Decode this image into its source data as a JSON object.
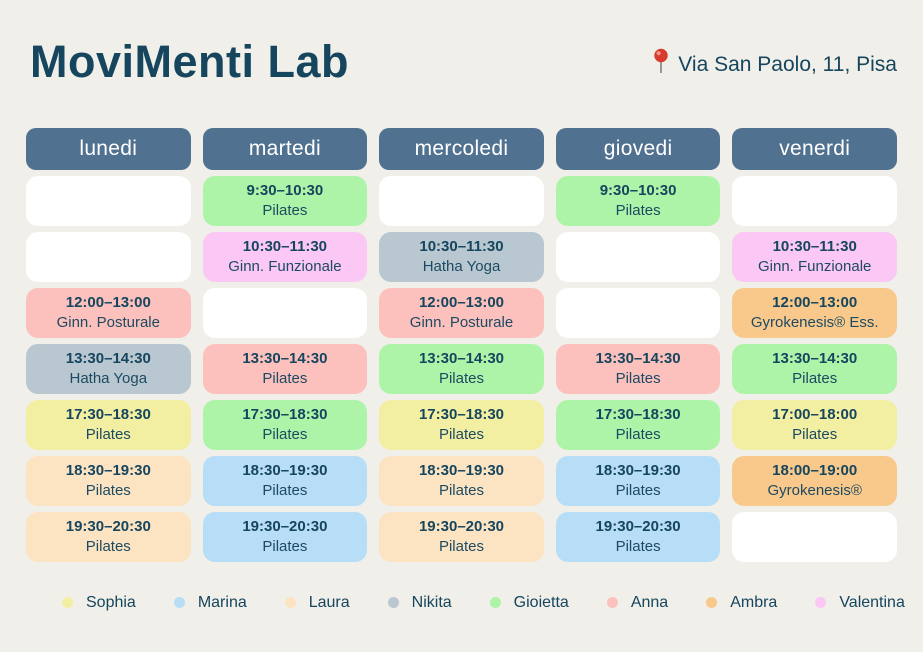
{
  "page": {
    "title": "MoviMenti Lab",
    "address": "Via San Paolo, 11, Pisa"
  },
  "colors": {
    "background": "#f0efe9",
    "day_header_bg": "#50718f",
    "day_header_text": "#ffffff",
    "text_dark": "#16455e",
    "empty_cell": "#ffffff",
    "pin_red": "#d93a2e"
  },
  "schedule": {
    "days": [
      {
        "label": "lunedi",
        "slots": [
          null,
          null,
          {
            "time": "12:00–13:00",
            "activity": "Ginn. Posturale",
            "teacher": "Anna"
          },
          {
            "time": "13:30–14:30",
            "activity": "Hatha Yoga",
            "teacher": "Nikita"
          },
          {
            "time": "17:30–18:30",
            "activity": "Pilates",
            "teacher": "Sophia"
          },
          {
            "time": "18:30–19:30",
            "activity": "Pilates",
            "teacher": "Laura"
          },
          {
            "time": "19:30–20:30",
            "activity": "Pilates",
            "teacher": "Laura"
          }
        ]
      },
      {
        "label": "martedi",
        "slots": [
          {
            "time": "9:30–10:30",
            "activity": "Pilates",
            "teacher": "Gioietta"
          },
          {
            "time": "10:30–11:30",
            "activity": "Ginn. Funzionale",
            "teacher": "Valentina"
          },
          null,
          {
            "time": "13:30–14:30",
            "activity": "Pilates",
            "teacher": "Anna"
          },
          {
            "time": "17:30–18:30",
            "activity": "Pilates",
            "teacher": "Gioietta"
          },
          {
            "time": "18:30–19:30",
            "activity": "Pilates",
            "teacher": "Marina"
          },
          {
            "time": "19:30–20:30",
            "activity": "Pilates",
            "teacher": "Marina"
          }
        ]
      },
      {
        "label": "mercoledi",
        "slots": [
          null,
          {
            "time": "10:30–11:30",
            "activity": "Hatha Yoga",
            "teacher": "Nikita"
          },
          {
            "time": "12:00–13:00",
            "activity": "Ginn. Posturale",
            "teacher": "Anna"
          },
          {
            "time": "13:30–14:30",
            "activity": "Pilates",
            "teacher": "Gioietta"
          },
          {
            "time": "17:30–18:30",
            "activity": "Pilates",
            "teacher": "Sophia"
          },
          {
            "time": "18:30–19:30",
            "activity": "Pilates",
            "teacher": "Laura"
          },
          {
            "time": "19:30–20:30",
            "activity": "Pilates",
            "teacher": "Laura"
          }
        ]
      },
      {
        "label": "giovedi",
        "slots": [
          {
            "time": "9:30–10:30",
            "activity": "Pilates",
            "teacher": "Gioietta"
          },
          null,
          null,
          {
            "time": "13:30–14:30",
            "activity": "Pilates",
            "teacher": "Anna"
          },
          {
            "time": "17:30–18:30",
            "activity": "Pilates",
            "teacher": "Gioietta"
          },
          {
            "time": "18:30–19:30",
            "activity": "Pilates",
            "teacher": "Marina"
          },
          {
            "time": "19:30–20:30",
            "activity": "Pilates",
            "teacher": "Marina"
          }
        ]
      },
      {
        "label": "venerdi",
        "slots": [
          null,
          {
            "time": "10:30–11:30",
            "activity": "Ginn. Funzionale",
            "teacher": "Valentina"
          },
          {
            "time": "12:00–13:00",
            "activity": "Gyrokenesis® Ess.",
            "teacher": "Ambra"
          },
          {
            "time": "13:30–14:30",
            "activity": "Pilates",
            "teacher": "Gioietta"
          },
          {
            "time": "17:00–18:00",
            "activity": "Pilates",
            "teacher": "Sophia"
          },
          {
            "time": "18:00–19:00",
            "activity": "Gyrokenesis®",
            "teacher": "Ambra"
          },
          null
        ]
      }
    ]
  },
  "legend": {
    "teachers": [
      {
        "name": "Sophia",
        "color": "#f3efa2"
      },
      {
        "name": "Marina",
        "color": "#b7ddf7"
      },
      {
        "name": "Laura",
        "color": "#fce4c2"
      },
      {
        "name": "Nikita",
        "color": "#b9c7d1"
      },
      {
        "name": "Gioietta",
        "color": "#aef4a8"
      },
      {
        "name": "Anna",
        "color": "#fcc1bc"
      },
      {
        "name": "Ambra",
        "color": "#f8c98b"
      },
      {
        "name": "Valentina",
        "color": "#fbc7f5"
      }
    ]
  }
}
